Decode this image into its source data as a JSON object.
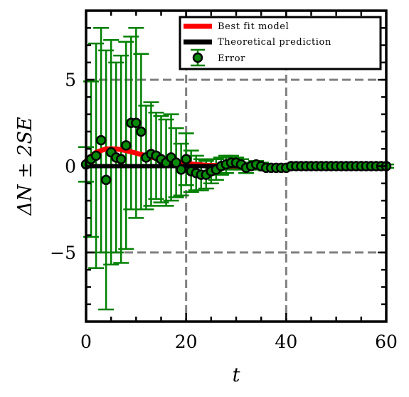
{
  "chart_data": {
    "type": "scatter",
    "xlabel": "t",
    "ylabel": "ΔN ± 2SE",
    "xlim": [
      0,
      60
    ],
    "ylim": [
      -9,
      9
    ],
    "x_ticks": [
      {
        "value": 0,
        "label": "0"
      },
      {
        "value": 20,
        "label": "20"
      },
      {
        "value": 40,
        "label": "40"
      },
      {
        "value": 60,
        "label": "60"
      }
    ],
    "y_ticks": [
      {
        "value": -5,
        "label": "−5"
      },
      {
        "value": 0,
        "label": "0"
      },
      {
        "value": 5,
        "label": "5"
      }
    ],
    "grid": "dashed gray at major ticks",
    "legend_position": "top-right",
    "colors": {
      "best_fit": "#ff0000",
      "theory": "#000000",
      "errorbar": "#008000",
      "marker_face": "#0a8a0a",
      "marker_edge": "#000000",
      "grid": "#808080"
    },
    "series": [
      {
        "name": "Best fit model",
        "kind": "line",
        "x": [
          0,
          2,
          4,
          6,
          8,
          10,
          12,
          14,
          16,
          18,
          20,
          22,
          24,
          26,
          28,
          30
        ],
        "y": [
          0.3,
          0.8,
          1.0,
          1.0,
          0.9,
          0.75,
          0.6,
          0.45,
          0.35,
          0.25,
          0.15,
          0.1,
          0.05,
          0.03,
          0.01,
          0
        ]
      },
      {
        "name": "Theoretical prediction",
        "kind": "line",
        "x": [
          0,
          60
        ],
        "y": [
          0,
          0
        ]
      },
      {
        "name": "Error",
        "kind": "errorbar",
        "x": [
          0,
          1,
          2,
          3,
          4,
          5,
          6,
          7,
          8,
          9,
          10,
          11,
          12,
          13,
          14,
          15,
          16,
          17,
          18,
          19,
          20,
          21,
          22,
          23,
          24,
          25,
          26,
          27,
          28,
          29,
          30,
          31,
          32,
          33,
          34,
          35,
          36,
          37,
          38,
          39,
          40,
          41,
          42,
          43,
          44,
          45,
          46,
          47,
          48,
          49,
          50,
          51,
          52,
          53,
          54,
          55,
          56,
          57,
          58,
          59,
          60
        ],
        "y": [
          0.1,
          0.4,
          0.6,
          1.5,
          -0.8,
          0.8,
          0.5,
          0.4,
          1.2,
          2.5,
          2.5,
          2.0,
          0.5,
          0.7,
          0.6,
          0.4,
          0.2,
          0.5,
          0.2,
          -0.2,
          0.4,
          -0.3,
          -0.4,
          -0.5,
          -0.5,
          -0.3,
          -0.2,
          0.0,
          0.1,
          0.2,
          0.2,
          0.1,
          -0.1,
          0.0,
          0.1,
          0.0,
          -0.1,
          -0.1,
          -0.1,
          -0.1,
          -0.1,
          0,
          0,
          0,
          0,
          0,
          0,
          0,
          0,
          0,
          0,
          0,
          0,
          0,
          0,
          0,
          0,
          0,
          0,
          0,
          0
        ],
        "err": [
          1.0,
          4.5,
          6.5,
          6.5,
          7.5,
          6.5,
          5.5,
          6.0,
          6.0,
          5.0,
          5.5,
          4.5,
          3.0,
          3.0,
          2.5,
          2.5,
          2.5,
          2.5,
          2.0,
          1.5,
          1.5,
          1.2,
          1.0,
          0.9,
          0.8,
          0.7,
          0.6,
          0.5,
          0.5,
          0.4,
          0.3,
          0.3,
          0.3,
          0.2,
          0.2,
          0.2,
          0.15,
          0.15,
          0.12,
          0.12,
          0.1,
          0.1,
          0.1,
          0.1,
          0.1,
          0.1,
          0.1,
          0.1,
          0.1,
          0.1,
          0.1,
          0.1,
          0.1,
          0.1,
          0.1,
          0.1,
          0.1,
          0.1,
          0.1,
          0.1,
          0.1
        ]
      }
    ]
  }
}
